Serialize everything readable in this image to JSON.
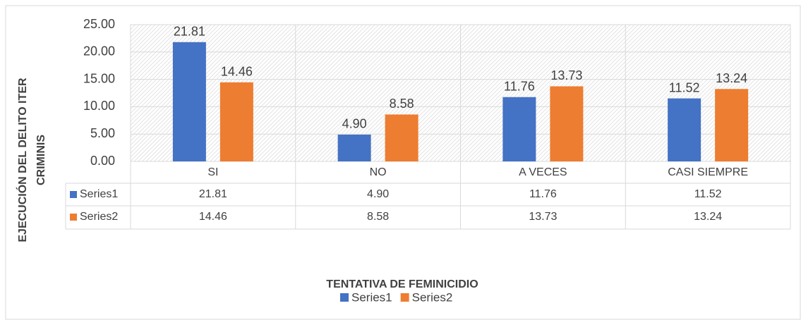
{
  "chart_data": {
    "type": "bar",
    "x_label": "TENTATIVA DE FEMINICIDIO",
    "y_label": "EJECUCIÓN DEL DELITO ITER CRIMINIS",
    "categories": [
      "SI",
      "NO",
      "A VECES",
      "CASI SIEMPRE"
    ],
    "series": [
      {
        "name": "Series1",
        "color": "#4472c4",
        "values": [
          21.81,
          4.9,
          11.76,
          11.52
        ],
        "value_labels": [
          "21.81",
          "4.90",
          "11.76",
          "11.52"
        ]
      },
      {
        "name": "Series2",
        "color": "#ed7d31",
        "values": [
          14.46,
          8.58,
          13.73,
          13.24
        ],
        "value_labels": [
          "14.46",
          "8.58",
          "13.73",
          "13.24"
        ]
      }
    ],
    "ylim": [
      0,
      25
    ],
    "yticks": [
      {
        "value": 0,
        "label": "0.00"
      },
      {
        "value": 5,
        "label": "5.00"
      },
      {
        "value": 10,
        "label": "10.00"
      },
      {
        "value": 15,
        "label": "15.00"
      },
      {
        "value": 20,
        "label": "20.00"
      },
      {
        "value": 25,
        "label": "25.00"
      }
    ],
    "grid": true
  }
}
